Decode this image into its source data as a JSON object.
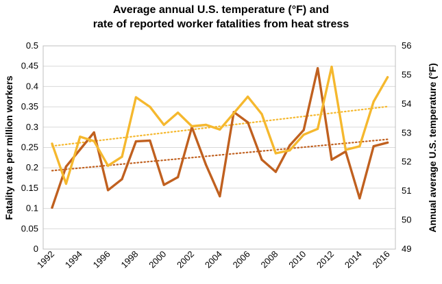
{
  "chart_data": {
    "type": "line",
    "title_lines": [
      "Average annual U.S. temperature (°F) and",
      "rate of reported worker fatalities from heat stress"
    ],
    "ylabel_left": "Fatality rate per million workers",
    "ylabel_right": "Annual average U.S. temperature (°F)",
    "x": [
      1992,
      1993,
      1994,
      1995,
      1996,
      1997,
      1998,
      1999,
      2000,
      2001,
      2002,
      2003,
      2004,
      2005,
      2006,
      2007,
      2008,
      2009,
      2010,
      2011,
      2012,
      2013,
      2014,
      2015,
      2016
    ],
    "x_tick_labels": [
      "1992",
      "1994",
      "1996",
      "1998",
      "2000",
      "2002",
      "2004",
      "2006",
      "2008",
      "2010",
      "2012",
      "2014",
      "2016"
    ],
    "y_left_ticks": [
      "0",
      "0.05",
      "0.1",
      "0.15",
      "0.2",
      "0.25",
      "0.3",
      "0.35",
      "0.4",
      "0.45",
      "0.5"
    ],
    "y_right_ticks": [
      "49",
      "50",
      "51",
      "52",
      "53",
      "54",
      "55",
      "56"
    ],
    "ylim_left": [
      0,
      0.5
    ],
    "ylim_right": [
      49,
      56
    ],
    "grid": true,
    "series": [
      {
        "name": "Fatality rate",
        "axis": "left",
        "color": "#c0601f",
        "values": [
          0.102,
          0.203,
          0.245,
          0.287,
          0.145,
          0.172,
          0.265,
          0.267,
          0.158,
          0.177,
          0.3,
          0.208,
          0.13,
          0.337,
          0.312,
          0.22,
          0.19,
          0.255,
          0.293,
          0.445,
          0.22,
          0.24,
          0.125,
          0.253,
          0.262
        ],
        "trend": [
          0.193,
          0.27
        ]
      },
      {
        "name": "Annual average temperature",
        "axis": "right",
        "color": "#f5b82e",
        "values": [
          52.63,
          51.25,
          52.87,
          52.72,
          51.87,
          52.18,
          54.23,
          53.9,
          53.28,
          53.7,
          53.23,
          53.28,
          53.12,
          53.68,
          54.25,
          53.65,
          52.3,
          52.4,
          52.94,
          53.14,
          55.28,
          52.42,
          52.54,
          54.08,
          54.92
        ],
        "trend": [
          52.55,
          53.91
        ]
      }
    ]
  }
}
